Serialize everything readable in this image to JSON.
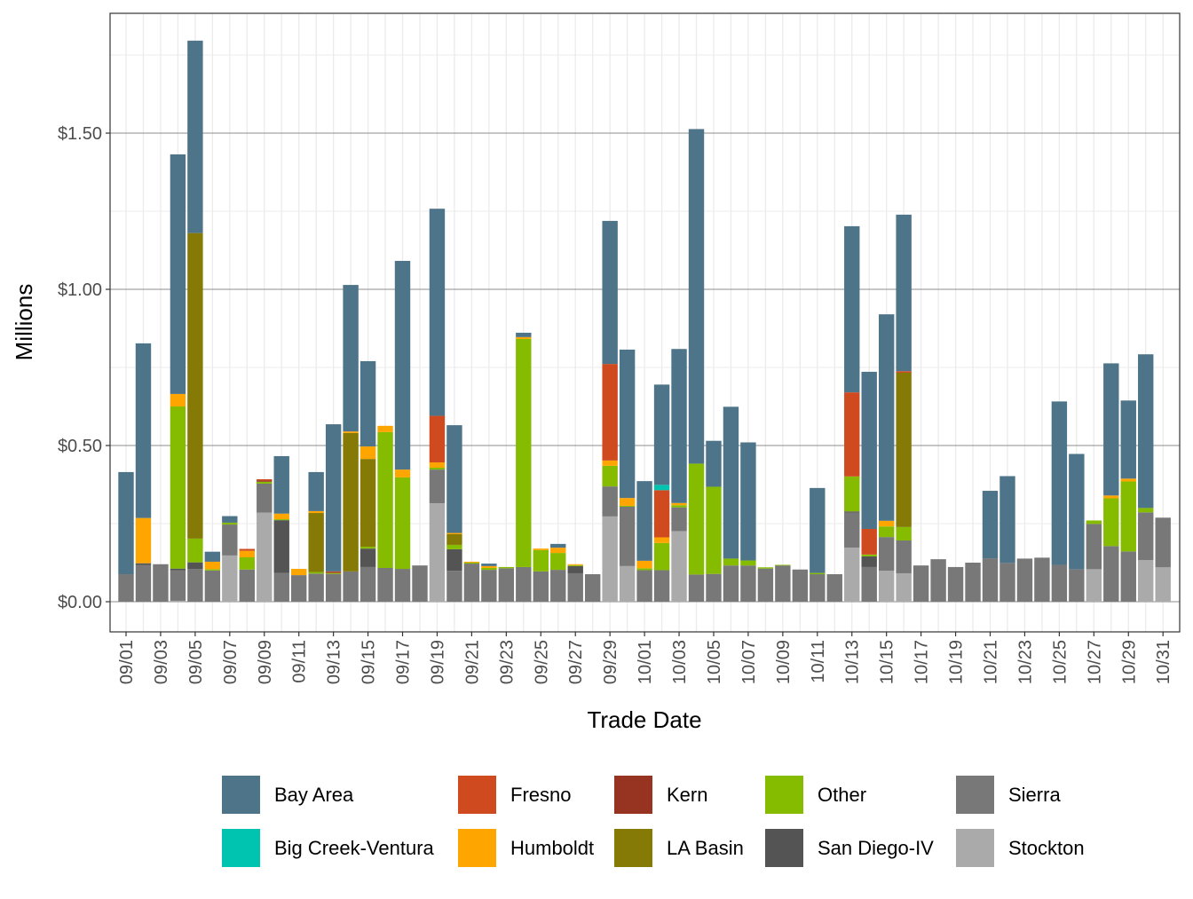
{
  "chart_data": {
    "type": "bar",
    "stacked": true,
    "title": "",
    "xlabel": "Trade Date",
    "ylabel": "Millions",
    "ylim": [
      -0.097,
      1.884
    ],
    "yticks": [
      0,
      0.5,
      1.0,
      1.5
    ],
    "ytick_labels": [
      "$0.00",
      "$0.50",
      "$1.00",
      "$1.50"
    ],
    "grid": true,
    "legend_position": "bottom",
    "xtick_labels": [
      "09/01",
      "09/03",
      "09/05",
      "09/07",
      "09/09",
      "09/11",
      "09/13",
      "09/15",
      "09/17",
      "09/19",
      "09/21",
      "09/23",
      "09/25",
      "09/27",
      "09/29",
      "10/01",
      "10/03",
      "10/05",
      "10/07",
      "10/09",
      "10/11",
      "10/13",
      "10/15",
      "10/17",
      "10/19",
      "10/21",
      "10/23",
      "10/25",
      "10/27",
      "10/29",
      "10/31"
    ],
    "stack_order": [
      "Stockton",
      "Sierra",
      "San Diego-IV",
      "Other",
      "LA Basin",
      "Kern",
      "Humboldt",
      "Fresno",
      "Big Creek-Ventura",
      "Bay Area"
    ],
    "legend": [
      {
        "name": "Bay Area",
        "color": "#4e7489"
      },
      {
        "name": "Big Creek-Ventura",
        "color": "#00c4b0"
      },
      {
        "name": "Fresno",
        "color": "#d04a20"
      },
      {
        "name": "Humboldt",
        "color": "#ffa500"
      },
      {
        "name": "Kern",
        "color": "#973421"
      },
      {
        "name": "LA Basin",
        "color": "#857a06"
      },
      {
        "name": "Other",
        "color": "#85bc00"
      },
      {
        "name": "San Diego-IV",
        "color": "#545454"
      },
      {
        "name": "Sierra",
        "color": "#787878"
      },
      {
        "name": "Stockton",
        "color": "#aaaaaa"
      }
    ],
    "data": [
      {
        "date": "09/01",
        "Sierra": 0.088,
        "Bay Area": 0.327
      },
      {
        "date": "09/02",
        "Sierra": 0.117,
        "San Diego-IV": 0.006,
        "Humboldt": 0.145,
        "Bay Area": 0.559
      },
      {
        "date": "09/03",
        "Sierra": 0.12
      },
      {
        "date": "09/04",
        "Stockton": 0.003,
        "Sierra": 0.097,
        "San Diego-IV": 0.006,
        "Other": 0.519,
        "Humboldt": 0.04,
        "Bay Area": 0.767
      },
      {
        "date": "09/05",
        "Sierra": 0.105,
        "San Diego-IV": 0.021,
        "Other": 0.076,
        "LA Basin": 0.978,
        "Bay Area": 0.616
      },
      {
        "date": "09/06",
        "Sierra": 0.1,
        "Other": 0.004,
        "Humboldt": 0.024,
        "Bay Area": 0.032
      },
      {
        "date": "09/07",
        "Stockton": 0.148,
        "Sierra": 0.099,
        "Other": 0.006,
        "Bay Area": 0.021
      },
      {
        "date": "09/08",
        "Sierra": 0.103,
        "Other": 0.039,
        "Humboldt": 0.021,
        "Fresno": 0.006
      },
      {
        "date": "09/09",
        "Stockton": 0.285,
        "Sierra": 0.093,
        "Other": 0.006,
        "Kern": 0.004,
        "Fresno": 0.004
      },
      {
        "date": "09/10",
        "Sierra": 0.092,
        "San Diego-IV": 0.169,
        "Other": 0.003,
        "Humboldt": 0.018,
        "Bay Area": 0.184
      },
      {
        "date": "09/11",
        "Sierra": 0.085,
        "Humboldt": 0.02
      },
      {
        "date": "09/12",
        "Sierra": 0.09,
        "Other": 0.005,
        "LA Basin": 0.189,
        "Humboldt": 0.006,
        "Bay Area": 0.125
      },
      {
        "date": "09/13",
        "Sierra": 0.089,
        "Other": 0.003,
        "Kern": 0.003,
        "Fresno": 0.002,
        "Bay Area": 0.471
      },
      {
        "date": "09/14",
        "Sierra": 0.097,
        "LA Basin": 0.443,
        "Humboldt": 0.005,
        "Bay Area": 0.469
      },
      {
        "date": "09/15",
        "Sierra": 0.111,
        "San Diego-IV": 0.059,
        "Other": 0.006,
        "LA Basin": 0.281,
        "Humboldt": 0.04,
        "Bay Area": 0.273
      },
      {
        "date": "09/16",
        "Sierra": 0.108,
        "Other": 0.435,
        "Humboldt": 0.02
      },
      {
        "date": "09/17",
        "Sierra": 0.105,
        "Other": 0.293,
        "Humboldt": 0.025,
        "Bay Area": 0.668
      },
      {
        "date": "09/18",
        "Sierra": 0.116
      },
      {
        "date": "09/19",
        "Stockton": 0.315,
        "Sierra": 0.108,
        "Other": 0.006,
        "Humboldt": 0.017,
        "Fresno": 0.149,
        "Bay Area": 0.663
      },
      {
        "date": "09/20",
        "Sierra": 0.099,
        "San Diego-IV": 0.069,
        "Other": 0.014,
        "LA Basin": 0.034,
        "Humboldt": 0.004,
        "Bay Area": 0.345
      },
      {
        "date": "09/21",
        "Sierra": 0.122,
        "Other": 0.003,
        "Humboldt": 0.003
      },
      {
        "date": "09/22",
        "Sierra": 0.102,
        "Other": 0.006,
        "Humboldt": 0.006,
        "Bay Area": 0.008
      },
      {
        "date": "09/23",
        "Sierra": 0.107,
        "Other": 0.004
      },
      {
        "date": "09/24",
        "Sierra": 0.111,
        "Other": 0.73,
        "Humboldt": 0.006,
        "Bay Area": 0.014
      },
      {
        "date": "09/25",
        "Sierra": 0.097,
        "Other": 0.068,
        "Humboldt": 0.005
      },
      {
        "date": "09/26",
        "Sierra": 0.102,
        "Other": 0.054,
        "Humboldt": 0.017,
        "Bay Area": 0.012
      },
      {
        "date": "09/27",
        "Sierra": 0.091,
        "San Diego-IV": 0.023,
        "Other": 0.003,
        "Humboldt": 0.003
      },
      {
        "date": "09/28",
        "Sierra": 0.088
      },
      {
        "date": "09/29",
        "Stockton": 0.273,
        "Sierra": 0.096,
        "Other": 0.066,
        "Humboldt": 0.017,
        "Fresno": 0.309,
        "Bay Area": 0.458
      },
      {
        "date": "09/30",
        "Stockton": 0.114,
        "Sierra": 0.19,
        "Other": 0.003,
        "Humboldt": 0.025,
        "Bay Area": 0.475
      },
      {
        "date": "10/01",
        "Sierra": 0.101,
        "Other": 0.006,
        "Humboldt": 0.024,
        "Bay Area": 0.255
      },
      {
        "date": "10/02",
        "Sierra": 0.101,
        "Other": 0.087,
        "Humboldt": 0.018,
        "Fresno": 0.151,
        "Big Creek-Ventura": 0.017,
        "Bay Area": 0.321
      },
      {
        "date": "10/03",
        "Stockton": 0.226,
        "Sierra": 0.076,
        "Other": 0.007,
        "Humboldt": 0.007,
        "Bay Area": 0.493
      },
      {
        "date": "10/04",
        "Sierra": 0.087,
        "Other": 0.355,
        "Bay Area": 1.071
      },
      {
        "date": "10/05",
        "Sierra": 0.089,
        "Other": 0.279,
        "Bay Area": 0.147
      },
      {
        "date": "10/06",
        "Sierra": 0.116,
        "Other": 0.022,
        "Bay Area": 0.486
      },
      {
        "date": "10/07",
        "Sierra": 0.116,
        "Other": 0.016,
        "Bay Area": 0.378
      },
      {
        "date": "10/08",
        "Sierra": 0.106,
        "Other": 0.004
      },
      {
        "date": "10/09",
        "Sierra": 0.116,
        "Other": 0.002
      },
      {
        "date": "10/10",
        "Sierra": 0.103
      },
      {
        "date": "10/11",
        "Sierra": 0.088,
        "Other": 0.004,
        "Bay Area": 0.272
      },
      {
        "date": "10/12",
        "Sierra": 0.088
      },
      {
        "date": "10/13",
        "Stockton": 0.173,
        "Sierra": 0.112,
        "San Diego-IV": 0.004,
        "Other": 0.112,
        "Fresno": 0.269,
        "Bay Area": 0.532
      },
      {
        "date": "10/14",
        "Sierra": 0.111,
        "San Diego-IV": 0.034,
        "Other": 0.006,
        "Fresno": 0.082,
        "Bay Area": 0.503
      },
      {
        "date": "10/15",
        "Stockton": 0.099,
        "Sierra": 0.108,
        "Other": 0.034,
        "Humboldt": 0.018,
        "Bay Area": 0.661
      },
      {
        "date": "10/16",
        "Stockton": 0.091,
        "Sierra": 0.105,
        "Other": 0.043,
        "LA Basin": 0.494,
        "Fresno": 0.005,
        "Bay Area": 0.501
      },
      {
        "date": "10/17",
        "Sierra": 0.116
      },
      {
        "date": "10/18",
        "Sierra": 0.136
      },
      {
        "date": "10/19",
        "Sierra": 0.111
      },
      {
        "date": "10/20",
        "Sierra": 0.125
      },
      {
        "date": "10/21",
        "Sierra": 0.139,
        "Bay Area": 0.216
      },
      {
        "date": "10/22",
        "Sierra": 0.124,
        "Bay Area": 0.278
      },
      {
        "date": "10/23",
        "Sierra": 0.138
      },
      {
        "date": "10/24",
        "Sierra": 0.141
      },
      {
        "date": "10/25",
        "Sierra": 0.118,
        "Bay Area": 0.523
      },
      {
        "date": "10/26",
        "Sierra": 0.104,
        "Bay Area": 0.369
      },
      {
        "date": "10/27",
        "Stockton": 0.104,
        "Sierra": 0.145,
        "Other": 0.011
      },
      {
        "date": "10/28",
        "Sierra": 0.178,
        "Other": 0.153,
        "Humboldt": 0.009,
        "Bay Area": 0.423
      },
      {
        "date": "10/29",
        "Sierra": 0.161,
        "Other": 0.224,
        "Humboldt": 0.009,
        "Bay Area": 0.25
      },
      {
        "date": "10/30",
        "Stockton": 0.133,
        "Sierra": 0.153,
        "Other": 0.014,
        "Bay Area": 0.492
      },
      {
        "date": "10/31",
        "Stockton": 0.11,
        "Sierra": 0.159
      }
    ]
  }
}
